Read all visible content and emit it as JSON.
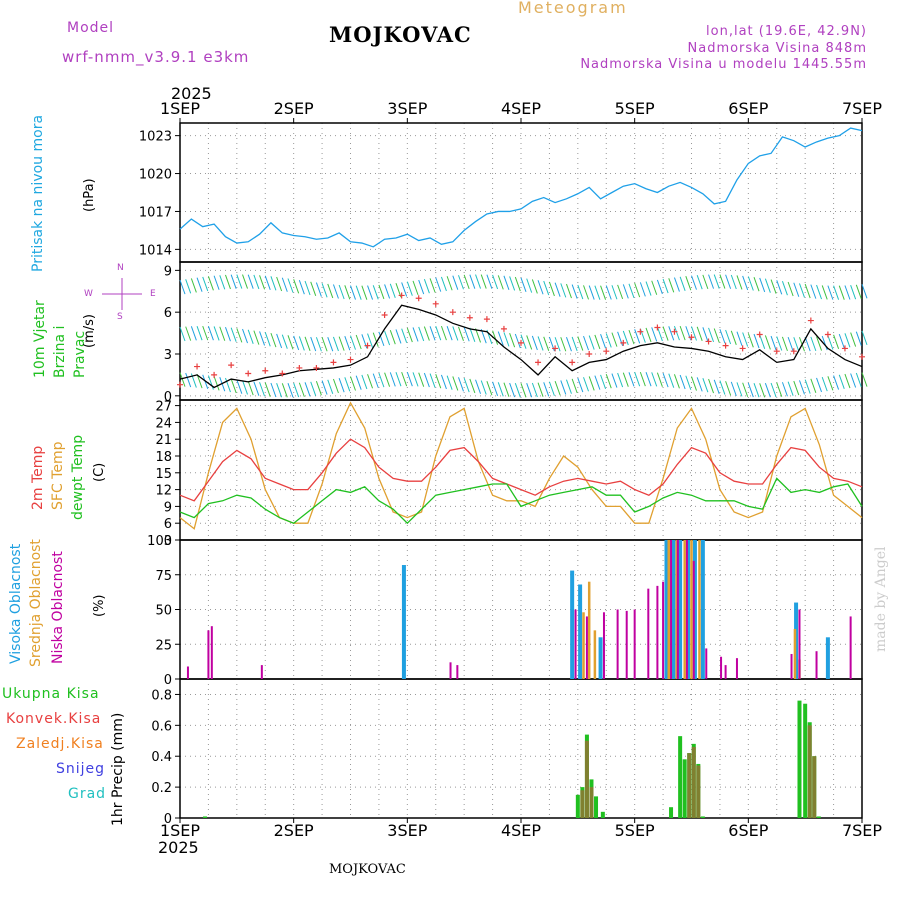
{
  "header": {
    "model_label": "Model",
    "model_name": "wrf-nmm_v3.9.1 e3km",
    "station": "MOJKOVAC",
    "meteogram": "Meteogram",
    "lonlat": "lon,lat (19.6E, 42.9N)",
    "elevation": "Nadmorska Visina 848m",
    "model_elevation": "Nadmorska Visina u modelu 1445.55m",
    "year_top": "2025",
    "year_bottom": "2025",
    "footer_station": "MOJKOVAC",
    "credit": "made by Angel"
  },
  "colors": {
    "pressure": "#1fa0e8",
    "temp2m": "#e84040",
    "sfc": "#e0a030",
    "dew": "#20c020",
    "wind_speed": "#000000",
    "gust": "#e84040",
    "high_cloud": "#20a0e0",
    "mid_cloud": "#e0a030",
    "low_cloud": "#c000a0",
    "total_rain": "#20c020",
    "conv_rain": "#e84040",
    "freezing_rain": "#f08020",
    "snow": "#4040e0",
    "hail": "#20c0c0",
    "model_label": "#b040c0"
  },
  "chart_data": [
    {
      "type": "line",
      "panel": "pressure",
      "title": "Pritisak na nivou mora",
      "ylabel": "(hPa)",
      "x_ticks": [
        "1SEP",
        "2SEP",
        "3SEP",
        "4SEP",
        "5SEP",
        "6SEP",
        "7SEP"
      ],
      "ylim": [
        1013,
        1024
      ],
      "y_ticks": [
        1014,
        1017,
        1020,
        1023
      ],
      "x": [
        0,
        0.1,
        0.2,
        0.3,
        0.4,
        0.5,
        0.6,
        0.7,
        0.8,
        0.9,
        1.0,
        1.1,
        1.2,
        1.3,
        1.4,
        1.5,
        1.6,
        1.7,
        1.8,
        1.9,
        2.0,
        2.1,
        2.2,
        2.3,
        2.4,
        2.5,
        2.6,
        2.7,
        2.8,
        2.9,
        3.0,
        3.1,
        3.2,
        3.3,
        3.4,
        3.5,
        3.6,
        3.7,
        3.8,
        3.9,
        4.0,
        4.1,
        4.2,
        4.3,
        4.4,
        4.5,
        4.6,
        4.7,
        4.8,
        4.9,
        5.0,
        5.1,
        5.2,
        5.3,
        5.4,
        5.5,
        5.6,
        5.7,
        5.8,
        5.9,
        6.0
      ],
      "series": [
        {
          "name": "MSLP",
          "values": [
            1015.6,
            1016.4,
            1015.8,
            1016.0,
            1015.0,
            1014.5,
            1014.6,
            1015.2,
            1016.1,
            1015.3,
            1015.1,
            1015.0,
            1014.8,
            1014.9,
            1015.3,
            1014.6,
            1014.5,
            1014.2,
            1014.8,
            1014.9,
            1015.2,
            1014.7,
            1014.9,
            1014.4,
            1014.6,
            1015.5,
            1016.2,
            1016.8,
            1017.0,
            1017.0,
            1017.2,
            1017.8,
            1018.1,
            1017.7,
            1018.0,
            1018.4,
            1018.9,
            1018.0,
            1018.5,
            1019.0,
            1019.2,
            1018.8,
            1018.5,
            1019.0,
            1019.3,
            1018.9,
            1018.4,
            1017.6,
            1017.8,
            1019.5,
            1020.8,
            1021.4,
            1021.6,
            1022.9,
            1022.6,
            1022.1,
            1022.5,
            1022.8,
            1023.0,
            1023.6,
            1023.4
          ]
        }
      ]
    },
    {
      "type": "line",
      "panel": "wind",
      "title": "10m Vjetar Brzina i Pravac",
      "ylabel": "(m/s)",
      "compass": {
        "n": "N",
        "s": "S",
        "e": "E",
        "w": "W"
      },
      "ylim": [
        -0.3,
        9.6
      ],
      "y_ticks": [
        0,
        3,
        6,
        9
      ],
      "x": [
        0,
        0.15,
        0.3,
        0.45,
        0.6,
        0.75,
        0.9,
        1.05,
        1.2,
        1.35,
        1.5,
        1.65,
        1.8,
        1.95,
        2.1,
        2.25,
        2.4,
        2.55,
        2.7,
        2.85,
        3.0,
        3.15,
        3.3,
        3.45,
        3.6,
        3.75,
        3.9,
        4.05,
        4.2,
        4.35,
        4.5,
        4.65,
        4.8,
        4.95,
        5.1,
        5.25,
        5.4,
        5.55,
        5.7,
        5.85,
        6.0
      ],
      "series": [
        {
          "name": "speed",
          "values": [
            1.2,
            1.5,
            0.6,
            1.2,
            1.0,
            1.3,
            1.5,
            1.8,
            1.9,
            2.0,
            2.2,
            2.8,
            4.8,
            6.5,
            6.2,
            5.8,
            5.2,
            4.8,
            4.6,
            3.5,
            2.6,
            1.5,
            2.8,
            1.8,
            2.4,
            2.6,
            3.2,
            3.6,
            3.8,
            3.5,
            3.4,
            3.2,
            2.8,
            2.6,
            3.3,
            2.4,
            2.6,
            4.8,
            3.4,
            2.6,
            2.1
          ]
        },
        {
          "name": "gust",
          "values": [
            0.8,
            2.1,
            1.5,
            2.2,
            1.6,
            1.8,
            1.6,
            2.0,
            2.0,
            2.4,
            2.6,
            3.6,
            5.8,
            7.2,
            7.0,
            6.6,
            6.0,
            5.6,
            5.5,
            4.8,
            3.8,
            2.4,
            3.4,
            2.4,
            3.0,
            3.2,
            3.8,
            4.6,
            4.9,
            4.6,
            4.2,
            3.9,
            3.6,
            3.4,
            4.4,
            3.2,
            3.2,
            5.4,
            4.4,
            3.4,
            2.8
          ]
        }
      ]
    },
    {
      "type": "line",
      "panel": "temperature",
      "title_a": "2m Temp",
      "title_b": "SFC Temp",
      "title_c": "dewpt Temp",
      "ylabel": "(C)",
      "ylim": [
        3,
        28
      ],
      "y_ticks": [
        3,
        6,
        9,
        12,
        15,
        18,
        21,
        24,
        27
      ],
      "x": [
        0,
        0.125,
        0.25,
        0.375,
        0.5,
        0.625,
        0.75,
        0.875,
        1.0,
        1.125,
        1.25,
        1.375,
        1.5,
        1.625,
        1.75,
        1.875,
        2.0,
        2.125,
        2.25,
        2.375,
        2.5,
        2.625,
        2.75,
        2.875,
        3.0,
        3.125,
        3.25,
        3.375,
        3.5,
        3.625,
        3.75,
        3.875,
        4.0,
        4.125,
        4.25,
        4.375,
        4.5,
        4.625,
        4.75,
        4.875,
        5.0,
        5.125,
        5.25,
        5.375,
        5.5,
        5.625,
        5.75,
        5.875,
        6.0
      ],
      "series": [
        {
          "name": "2m",
          "values": [
            11,
            10,
            13.5,
            17,
            19,
            17.5,
            14,
            13,
            12,
            12,
            15,
            18.5,
            21,
            19.5,
            16,
            14,
            13.5,
            13.5,
            16,
            19,
            19.5,
            17,
            14,
            13,
            12,
            11,
            12.5,
            13.5,
            14,
            13.5,
            13,
            13.5,
            12,
            11,
            13,
            16.5,
            19.5,
            18.5,
            15,
            13.5,
            13,
            13,
            16.5,
            19.5,
            19,
            16,
            14,
            13.5,
            12.5
          ]
        },
        {
          "name": "sfc",
          "values": [
            7,
            5,
            15,
            24,
            26.5,
            21,
            12,
            7,
            6,
            6,
            13,
            22,
            27.5,
            23,
            14,
            8,
            7,
            8,
            18,
            25,
            26.5,
            17,
            11,
            10,
            10,
            9,
            14,
            18,
            16,
            12,
            9,
            9,
            6,
            6,
            14,
            23,
            26.5,
            21,
            12,
            8,
            7,
            8,
            18,
            25,
            26.5,
            20,
            11,
            9,
            7
          ]
        },
        {
          "name": "dew",
          "values": [
            8,
            7,
            9.5,
            10,
            11,
            10.5,
            8.5,
            7,
            6,
            8,
            10,
            12,
            11.5,
            12.5,
            10,
            8.5,
            6,
            8.5,
            11,
            11.5,
            12,
            12.5,
            13,
            13,
            9,
            10,
            11,
            11.5,
            12,
            12.5,
            11,
            11,
            8,
            9,
            10.5,
            11.5,
            11,
            10,
            10,
            10,
            9,
            8.5,
            14,
            11.5,
            12,
            11.5,
            12.5,
            13,
            9
          ]
        }
      ]
    },
    {
      "type": "bar",
      "panel": "cloud",
      "title_a": "Visoka Oblacnost",
      "title_b": "Srednja Oblacnost",
      "title_c": "Niska Oblacnost",
      "ylabel": "(%)",
      "ylim": [
        0,
        100
      ],
      "y_ticks": [
        0,
        25,
        50,
        75,
        100
      ],
      "series": [
        {
          "name": "high",
          "x": [
            1.97,
            3.45,
            3.52,
            3.7,
            4.28,
            4.34,
            4.4,
            4.47,
            4.53,
            4.6,
            5.42,
            5.7
          ],
          "values": [
            82,
            78,
            68,
            30,
            100,
            100,
            100,
            100,
            100,
            100,
            55,
            30
          ]
        },
        {
          "name": "mid",
          "x": [
            3.55,
            3.6,
            3.65,
            4.3,
            4.37,
            4.44,
            4.5,
            4.57,
            5.41,
            5.45
          ],
          "values": [
            48,
            70,
            35,
            100,
            100,
            100,
            100,
            100,
            36,
            14
          ]
        },
        {
          "name": "low",
          "x": [
            0.07,
            0.25,
            0.28,
            0.72,
            2.38,
            2.44,
            3.48,
            3.58,
            3.73,
            3.85,
            3.93,
            4.0,
            4.12,
            4.2,
            4.25,
            4.32,
            4.38,
            4.46,
            4.52,
            4.63,
            4.76,
            4.8,
            4.9,
            5.38,
            5.45,
            5.6,
            5.9
          ],
          "values": [
            9,
            35,
            38,
            10,
            12,
            10,
            50,
            45,
            48,
            50,
            49,
            50,
            65,
            67,
            70,
            100,
            100,
            100,
            85,
            22,
            16,
            10,
            15,
            18,
            50,
            20,
            45
          ]
        }
      ]
    },
    {
      "type": "bar",
      "panel": "precip",
      "title_a": "Ukupna Kisa",
      "title_b": "Konvek.Kisa",
      "title_c": "Zaledj.Kisa",
      "title_d": "Snijeg",
      "title_e": "Grad",
      "ylabel": "1hr Precip (mm)",
      "ylim": [
        0,
        0.9
      ],
      "y_ticks": [
        0,
        0.2,
        0.4,
        0.6,
        0.8
      ],
      "x_ticks": [
        "1SEP",
        "2SEP",
        "3SEP",
        "4SEP",
        "5SEP",
        "6SEP",
        "7SEP"
      ],
      "series": [
        {
          "name": "total",
          "x": [
            0.22,
            3.5,
            3.54,
            3.58,
            3.62,
            3.66,
            3.72,
            4.32,
            4.4,
            4.44,
            4.48,
            4.52,
            4.56,
            4.6,
            5.45,
            5.5,
            5.54,
            5.58,
            5.62
          ],
          "values": [
            0.01,
            0.15,
            0.2,
            0.54,
            0.25,
            0.14,
            0.04,
            0.07,
            0.53,
            0.38,
            0.42,
            0.48,
            0.35,
            0.01,
            0.76,
            0.74,
            0.62,
            0.4,
            0.01
          ]
        },
        {
          "name": "conv",
          "x": [
            3.54,
            3.58,
            3.62,
            4.48,
            4.52,
            4.56,
            5.54,
            5.58
          ],
          "values": [
            0.18,
            0.5,
            0.2,
            0.42,
            0.46,
            0.34,
            0.6,
            0.4
          ]
        }
      ]
    }
  ]
}
